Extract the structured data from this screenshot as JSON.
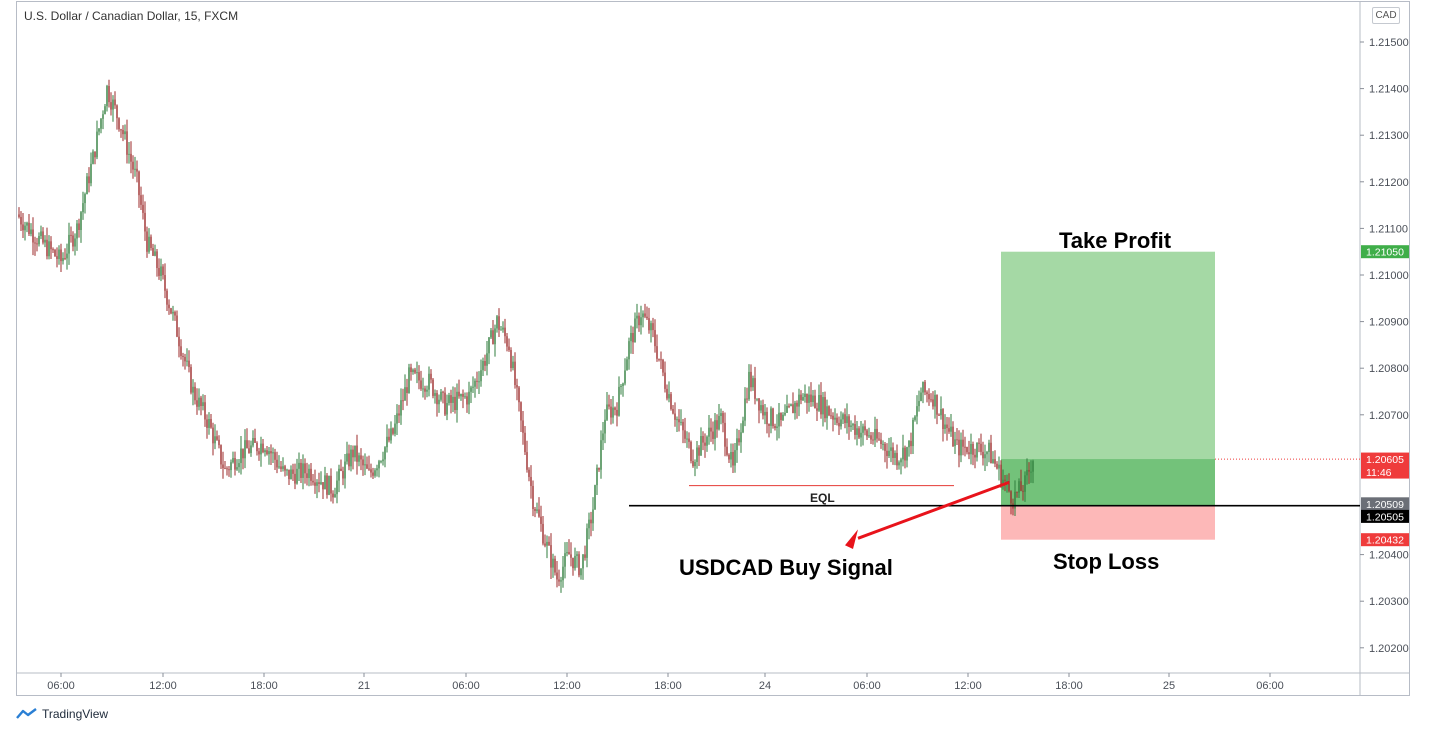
{
  "header": {
    "symbol_title": "U.S. Dollar / Canadian Dollar, 15, FXCM",
    "currency_badge": "CAD"
  },
  "footer": {
    "brand": "TradingView"
  },
  "annotations": {
    "take_profit": "Take Profit",
    "stop_loss": "Stop Loss",
    "buy_signal": "USDCAD Buy Signal",
    "eql": "EQL"
  },
  "price_tags": {
    "take_profit": "1.21050",
    "current_price": "1.20605",
    "countdown": "11:46",
    "entry_a": "1.20509",
    "entry_b": "1.20505",
    "stop": "1.20432"
  },
  "colors": {
    "up_candle": "#2f7d3c",
    "down_candle": "#9c2b2b",
    "profit_zone": "#a5d9a5",
    "profit_zone_active": "#73c27a",
    "loss_zone": "#fdb8b8",
    "green_tag": "#3fae49",
    "red_tag": "#ef3b3b",
    "gray_tag": "#6b6f77",
    "black_tag": "#000000",
    "arrow": "#e8131b",
    "eql_line": "#e53935"
  },
  "chart_data": {
    "type": "candlestick",
    "title": "U.S. Dollar / Canadian Dollar, 15, FXCM",
    "ylim": [
      1.2015,
      1.2158
    ],
    "y_ticks": [
      "1.21500",
      "1.21400",
      "1.21300",
      "1.21200",
      "1.21100",
      "1.21000",
      "1.20900",
      "1.20800",
      "1.20700",
      "1.20400",
      "1.20300",
      "1.20200"
    ],
    "x_ticks": [
      "06:00",
      "12:00",
      "18:00",
      "21",
      "06:00",
      "12:00",
      "18:00",
      "24",
      "06:00",
      "12:00",
      "18:00",
      "25",
      "06:00"
    ],
    "path": [
      [
        0,
        1.2113
      ],
      [
        10,
        1.2108
      ],
      [
        22,
        1.2103
      ],
      [
        30,
        1.211
      ],
      [
        38,
        1.2125
      ],
      [
        45,
        1.214
      ],
      [
        52,
        1.2132
      ],
      [
        60,
        1.212
      ],
      [
        65,
        1.2107
      ],
      [
        72,
        1.21
      ],
      [
        80,
        1.2088
      ],
      [
        88,
        1.2075
      ],
      [
        96,
        1.2068
      ],
      [
        104,
        1.2058
      ],
      [
        112,
        1.2062
      ],
      [
        124,
        1.2064
      ],
      [
        134,
        1.2057
      ],
      [
        146,
        1.2058
      ],
      [
        158,
        1.2054
      ],
      [
        168,
        1.2062
      ],
      [
        176,
        1.2057
      ],
      [
        188,
        1.2066
      ],
      [
        196,
        1.2078
      ],
      [
        206,
        1.2077
      ],
      [
        214,
        1.2072
      ],
      [
        226,
        1.2074
      ],
      [
        234,
        1.2082
      ],
      [
        240,
        1.209
      ],
      [
        246,
        1.2085
      ],
      [
        252,
        1.2068
      ],
      [
        258,
        1.2052
      ],
      [
        264,
        1.2043
      ],
      [
        270,
        1.2035
      ],
      [
        276,
        1.204
      ],
      [
        282,
        1.2037
      ],
      [
        288,
        1.205
      ],
      [
        294,
        1.207
      ],
      [
        300,
        1.2072
      ],
      [
        306,
        1.2085
      ],
      [
        312,
        1.2092
      ],
      [
        318,
        1.2087
      ],
      [
        324,
        1.2077
      ],
      [
        330,
        1.2069
      ],
      [
        338,
        1.2061
      ],
      [
        346,
        1.2066
      ],
      [
        352,
        1.2069
      ],
      [
        358,
        1.2058
      ],
      [
        366,
        1.2078
      ],
      [
        374,
        1.207
      ],
      [
        382,
        1.2068
      ],
      [
        392,
        1.2074
      ],
      [
        400,
        1.2073
      ],
      [
        408,
        1.207
      ],
      [
        416,
        1.2068
      ],
      [
        424,
        1.2066
      ],
      [
        432,
        1.2064
      ],
      [
        440,
        1.2061
      ],
      [
        446,
        1.2063
      ],
      [
        452,
        1.2075
      ],
      [
        458,
        1.2074
      ],
      [
        464,
        1.2068
      ],
      [
        470,
        1.2063
      ],
      [
        478,
        1.2063
      ],
      [
        486,
        1.2062
      ],
      [
        492,
        1.2057
      ],
      [
        498,
        1.2052
      ],
      [
        504,
        1.2055
      ],
      [
        508,
        1.2061
      ]
    ],
    "levels": {
      "take_profit": 1.2105,
      "entry": 1.20505,
      "stop_loss": 1.20432,
      "current": 1.20605,
      "eql": 1.20548
    }
  }
}
